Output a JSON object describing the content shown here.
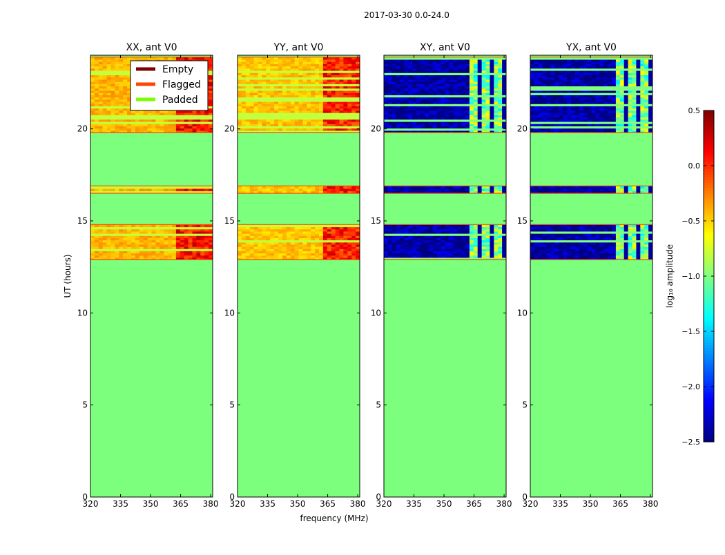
{
  "suptitle": "2017-03-30 0.0-24.0",
  "xlabel": "frequency (MHz)",
  "ylabel": "UT (hours)",
  "colorbar_label": "log₁₀ amplitude",
  "colors": {
    "padded_bg": "#7cff7c",
    "empty": "#800000",
    "flagged": "#ff4500",
    "padded": "#7cfc00",
    "low_amp": "#00008b",
    "high_amp": "#ff3000"
  },
  "legend": [
    {
      "label": "Empty",
      "color": "#800000"
    },
    {
      "label": "Flagged",
      "color": "#ff4500"
    },
    {
      "label": "Padded",
      "color": "#7cfc00"
    }
  ],
  "colorbar": {
    "range": [
      -2.5,
      0.5
    ],
    "ticks": [
      0.5,
      0.0,
      -0.5,
      -1.0,
      -1.5,
      -2.0,
      -2.5
    ],
    "tick_labels": [
      "0.5",
      "0.0",
      "−0.5",
      "−1.0",
      "−1.5",
      "−2.0",
      "−2.5"
    ]
  },
  "chart_data": [
    {
      "type": "heatmap",
      "title": "XX, ant V0",
      "xlim": [
        320,
        381
      ],
      "ylim": [
        0,
        24
      ],
      "xticks": [
        320,
        335,
        350,
        365,
        380
      ],
      "yticks": [
        0,
        5,
        10,
        15,
        20
      ],
      "data_blocks": [
        [
          12.9,
          14.8
        ],
        [
          16.5,
          16.9
        ],
        [
          19.8,
          23.9
        ]
      ],
      "typical_log_amp": -0.4,
      "rfi_band_mhz": [
        362,
        380
      ],
      "rfi_log_amp": 0.1
    },
    {
      "type": "heatmap",
      "title": "YY, ant V0",
      "xlim": [
        320,
        381
      ],
      "ylim": [
        0,
        24
      ],
      "xticks": [
        320,
        335,
        350,
        365,
        380
      ],
      "yticks": [
        0,
        5,
        10,
        15,
        20
      ],
      "data_blocks": [
        [
          12.9,
          14.8
        ],
        [
          16.5,
          16.9
        ],
        [
          19.8,
          23.9
        ]
      ],
      "typical_log_amp": -0.45,
      "rfi_band_mhz": [
        362,
        380
      ],
      "rfi_log_amp": 0.05
    },
    {
      "type": "heatmap",
      "title": "XY, ant V0",
      "xlim": [
        320,
        381
      ],
      "ylim": [
        0,
        24
      ],
      "xticks": [
        320,
        335,
        350,
        365,
        380
      ],
      "yticks": [
        0,
        5,
        10,
        15,
        20
      ],
      "data_blocks": [
        [
          12.9,
          14.8
        ],
        [
          16.5,
          16.9
        ],
        [
          19.8,
          23.9
        ]
      ],
      "typical_log_amp": -2.4,
      "rfi_band_mhz": [
        362,
        380
      ],
      "rfi_log_amp": -1.0
    },
    {
      "type": "heatmap",
      "title": "YX, ant V0",
      "xlim": [
        320,
        381
      ],
      "ylim": [
        0,
        24
      ],
      "xticks": [
        320,
        335,
        350,
        365,
        380
      ],
      "yticks": [
        0,
        5,
        10,
        15,
        20
      ],
      "data_blocks": [
        [
          12.9,
          14.8
        ],
        [
          16.5,
          16.9
        ],
        [
          19.8,
          23.9
        ]
      ],
      "typical_log_amp": -2.4,
      "rfi_band_mhz": [
        362,
        380
      ],
      "rfi_log_amp": -1.0
    }
  ]
}
